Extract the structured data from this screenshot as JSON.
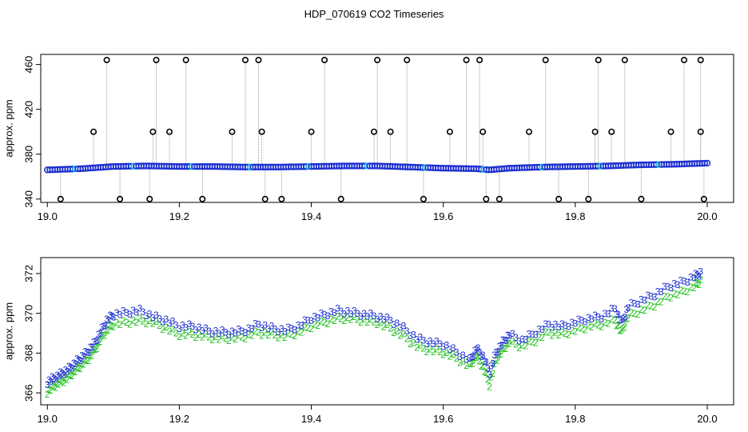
{
  "title": "HDP_070619  CO2 Timeseries",
  "chart_data": [
    {
      "type": "scatter",
      "panel": "top",
      "ylabel": "approx. ppm",
      "xlabel": "",
      "xlim": [
        18.99,
        20.04
      ],
      "ylim": [
        337,
        469
      ],
      "xticks": [
        19.0,
        19.2,
        19.4,
        19.6,
        19.8,
        20.0
      ],
      "xtick_labels": [
        "19.0",
        "19.2",
        "19.4",
        "19.6",
        "19.8",
        "20.0"
      ],
      "yticks": [
        340,
        380,
        420,
        460
      ],
      "ytick_labels": [
        "340",
        "380",
        "420",
        "460"
      ],
      "grid": false,
      "baseline": {
        "x": [
          19.0,
          19.05,
          19.1,
          19.15,
          19.2,
          19.25,
          19.3,
          19.35,
          19.4,
          19.45,
          19.5,
          19.55,
          19.6,
          19.65,
          19.67,
          19.7,
          19.75,
          19.8,
          19.85,
          19.9,
          19.95,
          20.0
        ],
        "y": [
          366,
          367,
          369,
          369.5,
          369,
          369,
          368.5,
          368.5,
          369,
          369.5,
          369.5,
          368.5,
          367.5,
          367,
          366,
          367.5,
          368.5,
          369,
          369.5,
          370.5,
          371,
          372
        ]
      },
      "spikes": {
        "x": [
          19.02,
          19.07,
          19.09,
          19.11,
          19.155,
          19.16,
          19.165,
          19.185,
          19.21,
          19.235,
          19.28,
          19.3,
          19.32,
          19.325,
          19.33,
          19.355,
          19.4,
          19.42,
          19.445,
          19.495,
          19.5,
          19.52,
          19.545,
          19.57,
          19.61,
          19.635,
          19.655,
          19.66,
          19.665,
          19.685,
          19.73,
          19.755,
          19.775,
          19.82,
          19.83,
          19.835,
          19.855,
          19.875,
          19.9,
          19.945,
          19.965,
          19.99,
          19.99,
          19.995
        ],
        "y": [
          340,
          400,
          464,
          340,
          340,
          400,
          464,
          400,
          464,
          340,
          400,
          464,
          464,
          400,
          340,
          340,
          400,
          464,
          340,
          400,
          464,
          400,
          464,
          340,
          400,
          464,
          464,
          400,
          340,
          340,
          400,
          464,
          340,
          340,
          400,
          464,
          400,
          464,
          340,
          400,
          464,
          464,
          400,
          340
        ]
      },
      "colors": {
        "baseline_blue": "#1c2fd0",
        "baseline_cyan": "#10c8d8",
        "spike_line": "#9a9a9a",
        "spike_marker": "#000000"
      }
    },
    {
      "type": "scatter",
      "panel": "bottom",
      "ylabel": "approx. ppm",
      "xlabel": "",
      "xlim": [
        18.99,
        20.04
      ],
      "ylim": [
        365.4,
        372.8
      ],
      "xticks": [
        19.0,
        19.2,
        19.4,
        19.6,
        19.8,
        20.0
      ],
      "xtick_labels": [
        "19.0",
        "19.2",
        "19.4",
        "19.6",
        "19.8",
        "20.0"
      ],
      "yticks": [
        366,
        368,
        370,
        372
      ],
      "ytick_labels": [
        "366",
        "368",
        "370",
        "372"
      ],
      "grid": false,
      "series": [
        {
          "marker": "3",
          "color": "#1c2fd0",
          "x": [
            19.0,
            19.01,
            19.02,
            19.03,
            19.04,
            19.05,
            19.06,
            19.07,
            19.08,
            19.09,
            19.1,
            19.12,
            19.14,
            19.16,
            19.18,
            19.2,
            19.22,
            19.24,
            19.26,
            19.28,
            19.3,
            19.32,
            19.34,
            19.36,
            19.38,
            19.4,
            19.42,
            19.44,
            19.46,
            19.48,
            19.5,
            19.52,
            19.54,
            19.56,
            19.58,
            19.6,
            19.62,
            19.64,
            19.65,
            19.66,
            19.67,
            19.68,
            19.69,
            19.7,
            19.72,
            19.74,
            19.76,
            19.78,
            19.8,
            19.82,
            19.84,
            19.86,
            19.87,
            19.88,
            19.9,
            19.92,
            19.94,
            19.96,
            19.98,
            19.99
          ],
          "y": [
            366.5,
            366.7,
            366.9,
            367.1,
            367.4,
            367.7,
            368.0,
            368.4,
            369.0,
            369.6,
            369.9,
            370.0,
            370.1,
            369.8,
            369.6,
            369.3,
            369.3,
            369.1,
            369.0,
            369.0,
            369.1,
            369.4,
            369.2,
            369.1,
            369.3,
            369.7,
            369.9,
            370.1,
            370.0,
            369.9,
            369.8,
            369.6,
            369.2,
            368.7,
            368.5,
            368.4,
            368.0,
            367.6,
            368.2,
            367.8,
            367.0,
            368.0,
            368.5,
            368.9,
            368.6,
            369.0,
            369.4,
            369.3,
            369.5,
            369.7,
            369.8,
            370.2,
            369.5,
            370.3,
            370.6,
            370.9,
            371.3,
            371.5,
            371.8,
            372.0
          ]
        },
        {
          "marker": "2",
          "color": "#22c020",
          "x": [
            19.0,
            19.01,
            19.02,
            19.03,
            19.04,
            19.05,
            19.06,
            19.07,
            19.08,
            19.09,
            19.1,
            19.12,
            19.14,
            19.16,
            19.18,
            19.2,
            19.22,
            19.24,
            19.26,
            19.28,
            19.3,
            19.32,
            19.34,
            19.36,
            19.38,
            19.4,
            19.42,
            19.44,
            19.46,
            19.48,
            19.5,
            19.52,
            19.54,
            19.56,
            19.58,
            19.6,
            19.62,
            19.64,
            19.65,
            19.66,
            19.67,
            19.68,
            19.69,
            19.7,
            19.72,
            19.74,
            19.76,
            19.78,
            19.8,
            19.82,
            19.84,
            19.86,
            19.87,
            19.88,
            19.9,
            19.92,
            19.94,
            19.96,
            19.98,
            19.99
          ],
          "y": [
            366.0,
            366.3,
            366.5,
            366.7,
            367.0,
            367.3,
            367.6,
            368.0,
            368.6,
            369.1,
            369.4,
            369.5,
            369.6,
            369.5,
            369.2,
            368.9,
            368.9,
            368.8,
            368.7,
            368.7,
            368.8,
            369.0,
            368.9,
            368.8,
            369.0,
            369.3,
            369.5,
            369.7,
            369.7,
            369.6,
            369.5,
            369.2,
            368.8,
            368.3,
            368.1,
            368.0,
            367.7,
            367.3,
            367.8,
            367.3,
            366.4,
            367.6,
            368.1,
            368.5,
            368.3,
            368.6,
            369.0,
            368.9,
            369.1,
            369.3,
            369.4,
            369.6,
            369.0,
            369.8,
            370.1,
            370.4,
            370.8,
            371.0,
            371.3,
            371.6
          ]
        }
      ]
    }
  ]
}
